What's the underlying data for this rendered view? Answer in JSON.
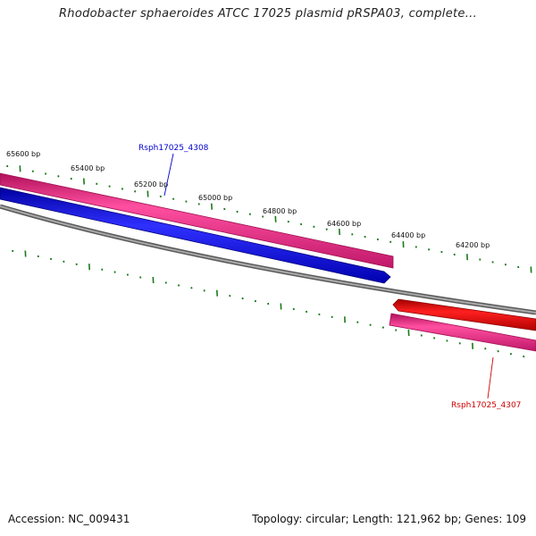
{
  "title": "Rhodobacter sphaeroides ATCC 17025 plasmid pRSPA03, complete...",
  "ticks": [
    "65600 bp",
    "65400 bp",
    "65200 bp",
    "65000 bp",
    "64800 bp",
    "64600 bp",
    "64400 bp",
    "64200 bp"
  ],
  "genes": [
    {
      "name": "Rsph17025_4308",
      "strand": "forward",
      "color": "#0000cc"
    },
    {
      "name": "Rsph17025_4307",
      "strand": "reverse",
      "color": "#cc0000"
    }
  ],
  "colors": {
    "gene_forward": "#1414e6",
    "gene_reverse": "#ee0000",
    "cds_track": "#e8287e",
    "backbone": "#808080",
    "ticks": "#1a7a1a"
  },
  "footer": {
    "accession": "Accession: NC_009431",
    "summary": "Topology: circular; Length: 121,962 bp; Genes: 109"
  }
}
